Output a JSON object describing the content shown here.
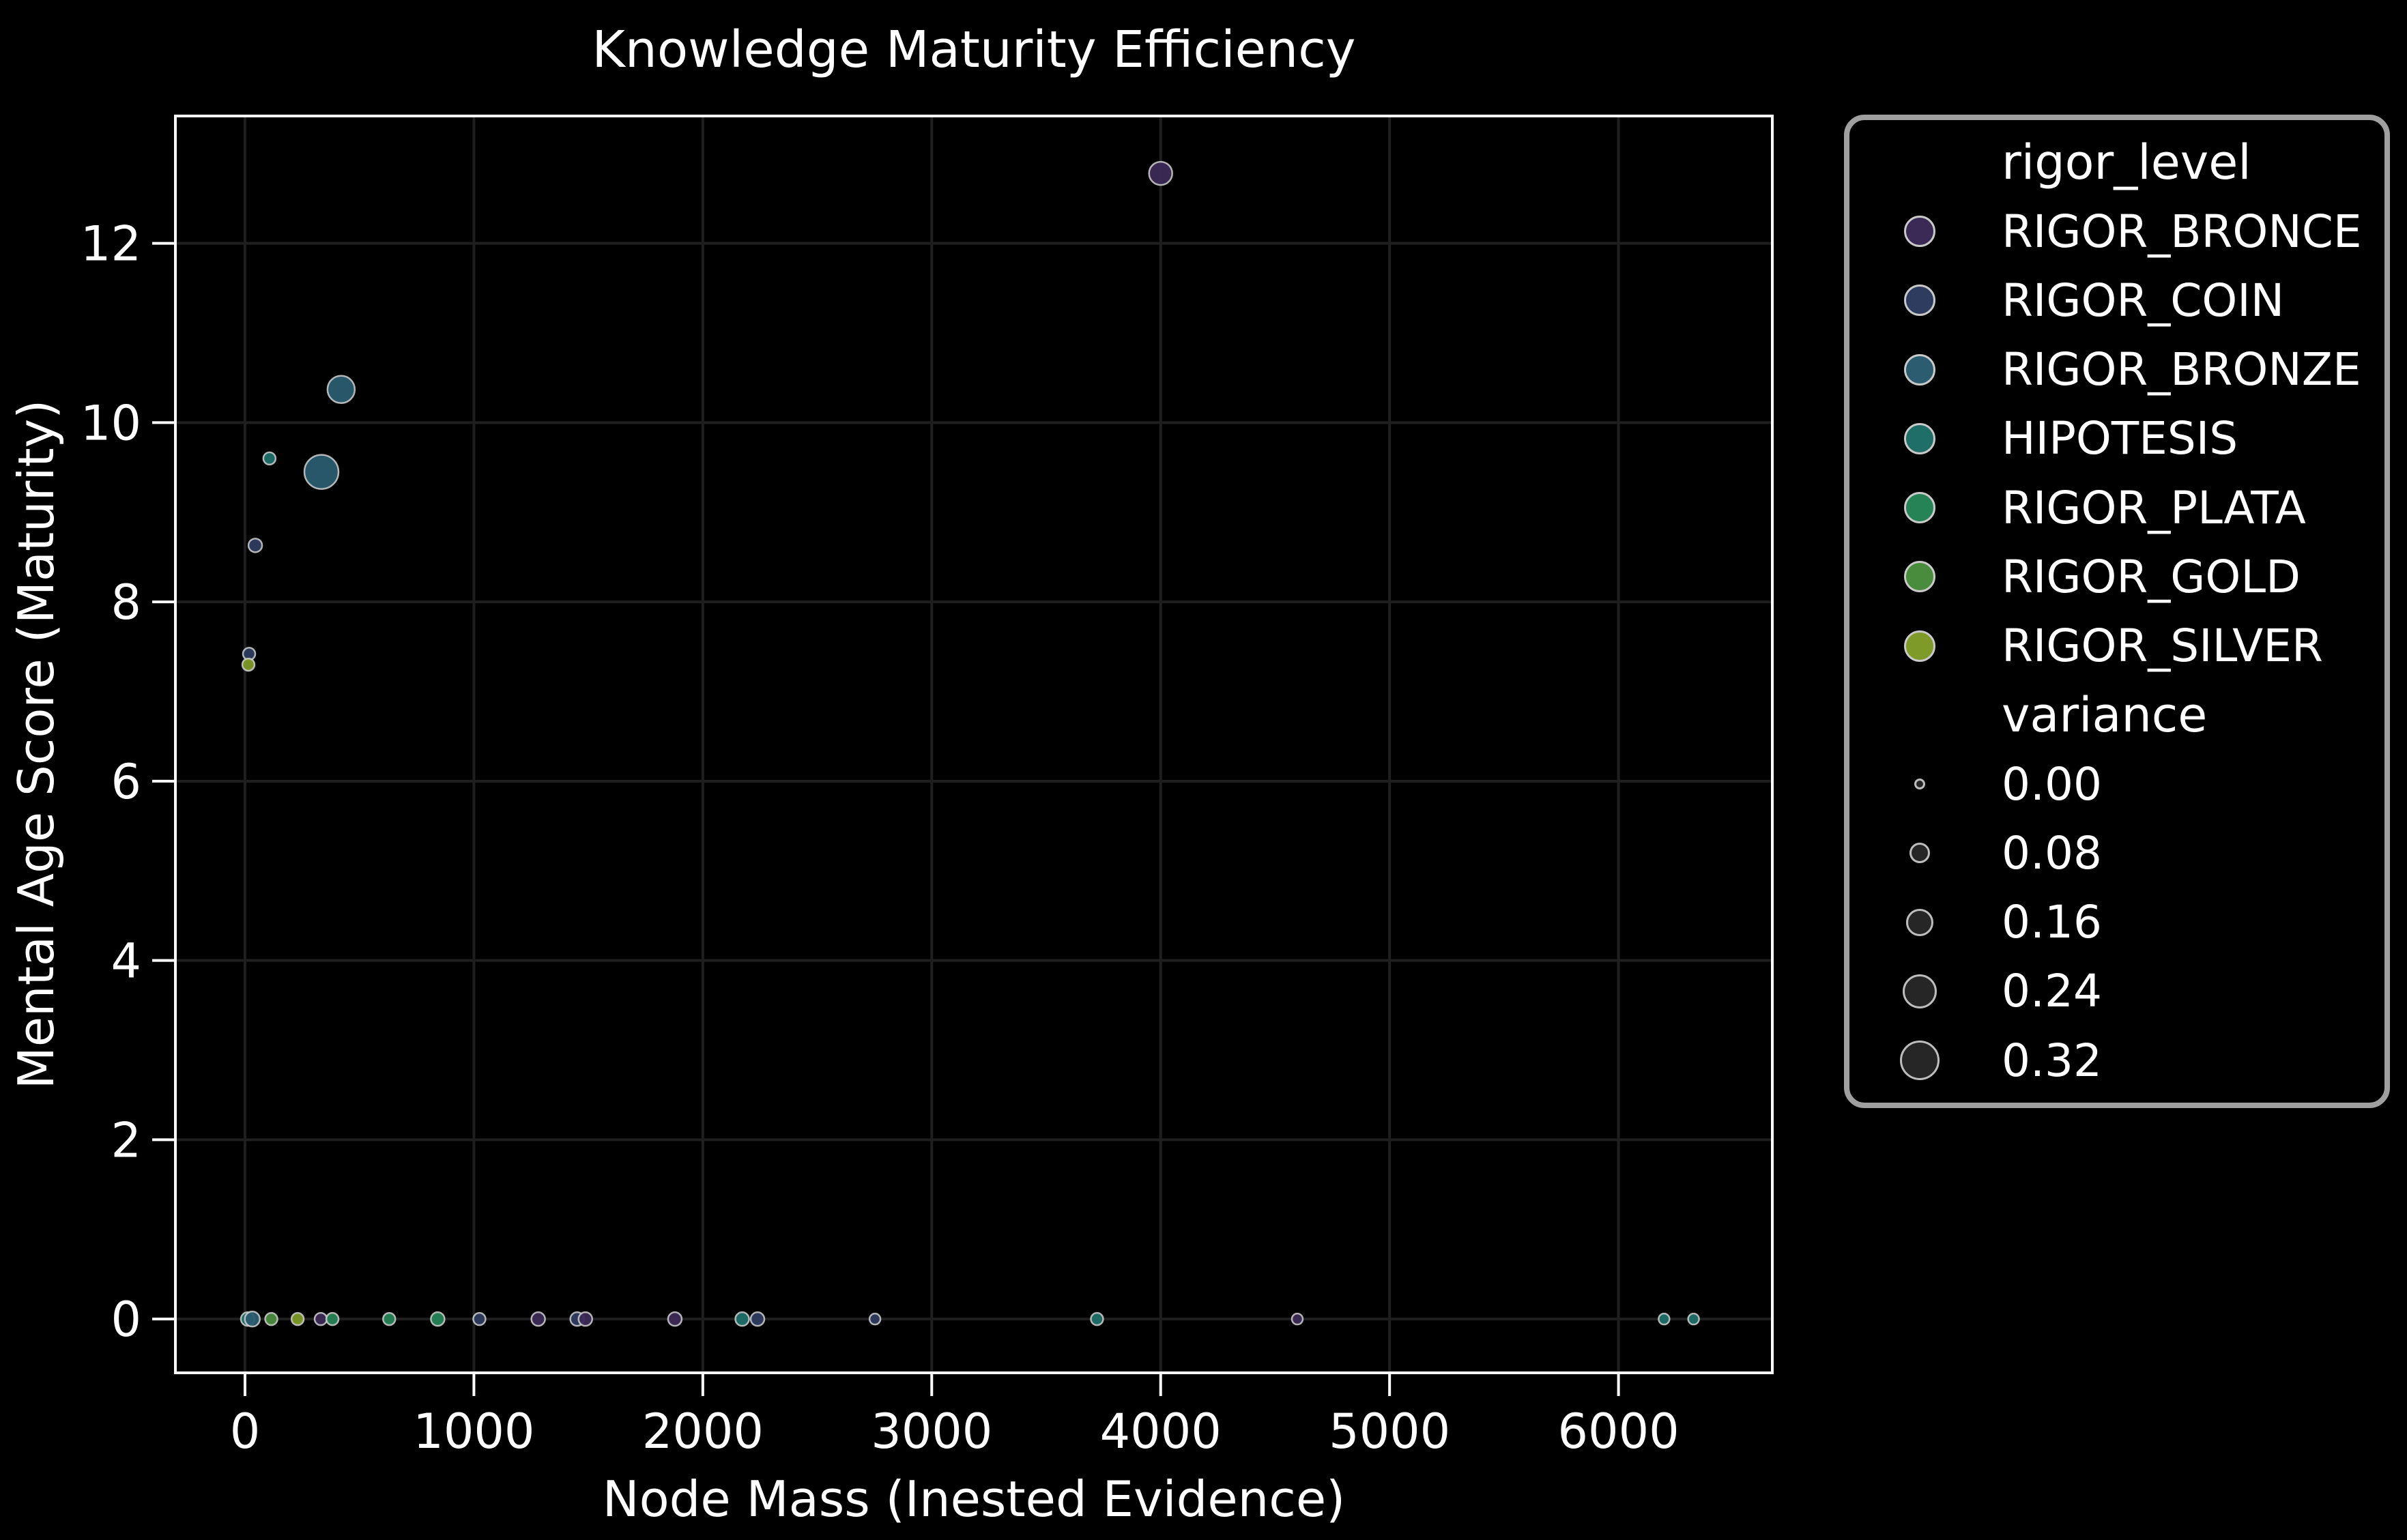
{
  "figure": {
    "background": "#000000",
    "text_color": "#ffffff",
    "grid_color": "#1f1f1f",
    "axis_color": "#ffffff",
    "marker_edge_color": "#cfcfcf",
    "legend_border_color": "#a0a0a0",
    "size_swatch_fill": "#262626"
  },
  "chart_data": {
    "type": "scatter",
    "title": "Knowledge Maturity Efficiency",
    "xlabel": "Node Mass (Inested Evidence)",
    "ylabel": "Mental Age Score (Maturity)",
    "xlim": [
      -304,
      6672
    ],
    "ylim": [
      -0.6,
      13.42
    ],
    "x_ticks": [
      0,
      1000,
      2000,
      3000,
      4000,
      5000,
      6000
    ],
    "y_ticks": [
      0,
      2,
      4,
      6,
      8,
      10,
      12
    ],
    "grid": true,
    "legend_position": "right",
    "series_key": "rigor_level",
    "size_key": "variance",
    "category_colors": {
      "RIGOR_BRONCE": "#3b2a56",
      "RIGOR_COIN": "#2e3c60",
      "RIGOR_BRONZE": "#2b5c70",
      "HIPOTESIS": "#1f6f68",
      "RIGOR_PLATA": "#268356",
      "RIGOR_GOLD": "#4a8c3e",
      "RIGOR_SILVER": "#7e9a28"
    },
    "points": [
      {
        "x": 4000,
        "y": 12.78,
        "rigor_level": "RIGOR_BRONCE",
        "variance": 0.1,
        "r": 17
      },
      {
        "x": 420,
        "y": 10.37,
        "rigor_level": "RIGOR_BRONZE",
        "variance": 0.16,
        "r": 20
      },
      {
        "x": 107,
        "y": 9.6,
        "rigor_level": "HIPOTESIS",
        "variance": 0.02,
        "r": 9
      },
      {
        "x": 334,
        "y": 9.45,
        "rigor_level": "RIGOR_BRONZE",
        "variance": 0.24,
        "r": 25
      },
      {
        "x": 45,
        "y": 8.63,
        "rigor_level": "RIGOR_COIN",
        "variance": 0.02,
        "r": 10
      },
      {
        "x": 18,
        "y": 7.42,
        "rigor_level": "RIGOR_COIN",
        "variance": 0.02,
        "r": 9
      },
      {
        "x": 15,
        "y": 7.3,
        "rigor_level": "RIGOR_SILVER",
        "variance": 0.02,
        "r": 9
      },
      {
        "x": 12,
        "y": 0,
        "rigor_level": "HIPOTESIS",
        "variance": 0.02,
        "r": 10
      },
      {
        "x": 32,
        "y": 0,
        "rigor_level": "RIGOR_BRONZE",
        "variance": 0.03,
        "r": 11
      },
      {
        "x": 115,
        "y": 0,
        "rigor_level": "RIGOR_GOLD",
        "variance": 0.02,
        "r": 9
      },
      {
        "x": 230,
        "y": 0,
        "rigor_level": "RIGOR_SILVER",
        "variance": 0.02,
        "r": 9
      },
      {
        "x": 331,
        "y": 0,
        "rigor_level": "RIGOR_BRONCE",
        "variance": 0.02,
        "r": 9
      },
      {
        "x": 382,
        "y": 0,
        "rigor_level": "RIGOR_PLATA",
        "variance": 0.02,
        "r": 9
      },
      {
        "x": 630,
        "y": 0,
        "rigor_level": "RIGOR_PLATA",
        "variance": 0.02,
        "r": 9
      },
      {
        "x": 842,
        "y": 0,
        "rigor_level": "RIGOR_PLATA",
        "variance": 0.02,
        "r": 10
      },
      {
        "x": 1024,
        "y": 0,
        "rigor_level": "RIGOR_COIN",
        "variance": 0.02,
        "r": 9
      },
      {
        "x": 1281,
        "y": 0,
        "rigor_level": "RIGOR_BRONCE",
        "variance": 0.02,
        "r": 10
      },
      {
        "x": 1451,
        "y": 0,
        "rigor_level": "RIGOR_COIN",
        "variance": 0.02,
        "r": 10
      },
      {
        "x": 1487,
        "y": 0,
        "rigor_level": "RIGOR_BRONCE",
        "variance": 0.02,
        "r": 10
      },
      {
        "x": 1878,
        "y": 0,
        "rigor_level": "RIGOR_BRONCE",
        "variance": 0.02,
        "r": 10
      },
      {
        "x": 2172,
        "y": 0,
        "rigor_level": "HIPOTESIS",
        "variance": 0.02,
        "r": 10
      },
      {
        "x": 2239,
        "y": 0,
        "rigor_level": "RIGOR_COIN",
        "variance": 0.02,
        "r": 10
      },
      {
        "x": 2752,
        "y": 0,
        "rigor_level": "RIGOR_COIN",
        "variance": 0.01,
        "r": 8
      },
      {
        "x": 3722,
        "y": 0,
        "rigor_level": "HIPOTESIS",
        "variance": 0.02,
        "r": 9
      },
      {
        "x": 4597,
        "y": 0,
        "rigor_level": "RIGOR_BRONCE",
        "variance": 0.01,
        "r": 8
      },
      {
        "x": 6199,
        "y": 0,
        "rigor_level": "HIPOTESIS",
        "variance": 0.01,
        "r": 8
      },
      {
        "x": 6328,
        "y": 0,
        "rigor_level": "HIPOTESIS",
        "variance": 0.01,
        "r": 8
      }
    ]
  },
  "legend": {
    "title": "rigor_level",
    "entries": [
      {
        "label": "RIGOR_BRONCE",
        "color": "#3b2a56"
      },
      {
        "label": "RIGOR_COIN",
        "color": "#2e3c60"
      },
      {
        "label": "RIGOR_BRONZE",
        "color": "#2b5c70"
      },
      {
        "label": "HIPOTESIS",
        "color": "#1f6f68"
      },
      {
        "label": "RIGOR_PLATA",
        "color": "#268356"
      },
      {
        "label": "RIGOR_GOLD",
        "color": "#4a8c3e"
      },
      {
        "label": "RIGOR_SILVER",
        "color": "#7e9a28"
      }
    ],
    "size_title": "variance",
    "size_entries": [
      {
        "label": "0.00",
        "r": 8
      },
      {
        "label": "0.08",
        "r": 15
      },
      {
        "label": "0.16",
        "r": 20
      },
      {
        "label": "0.24",
        "r": 25
      },
      {
        "label": "0.32",
        "r": 29
      }
    ]
  }
}
